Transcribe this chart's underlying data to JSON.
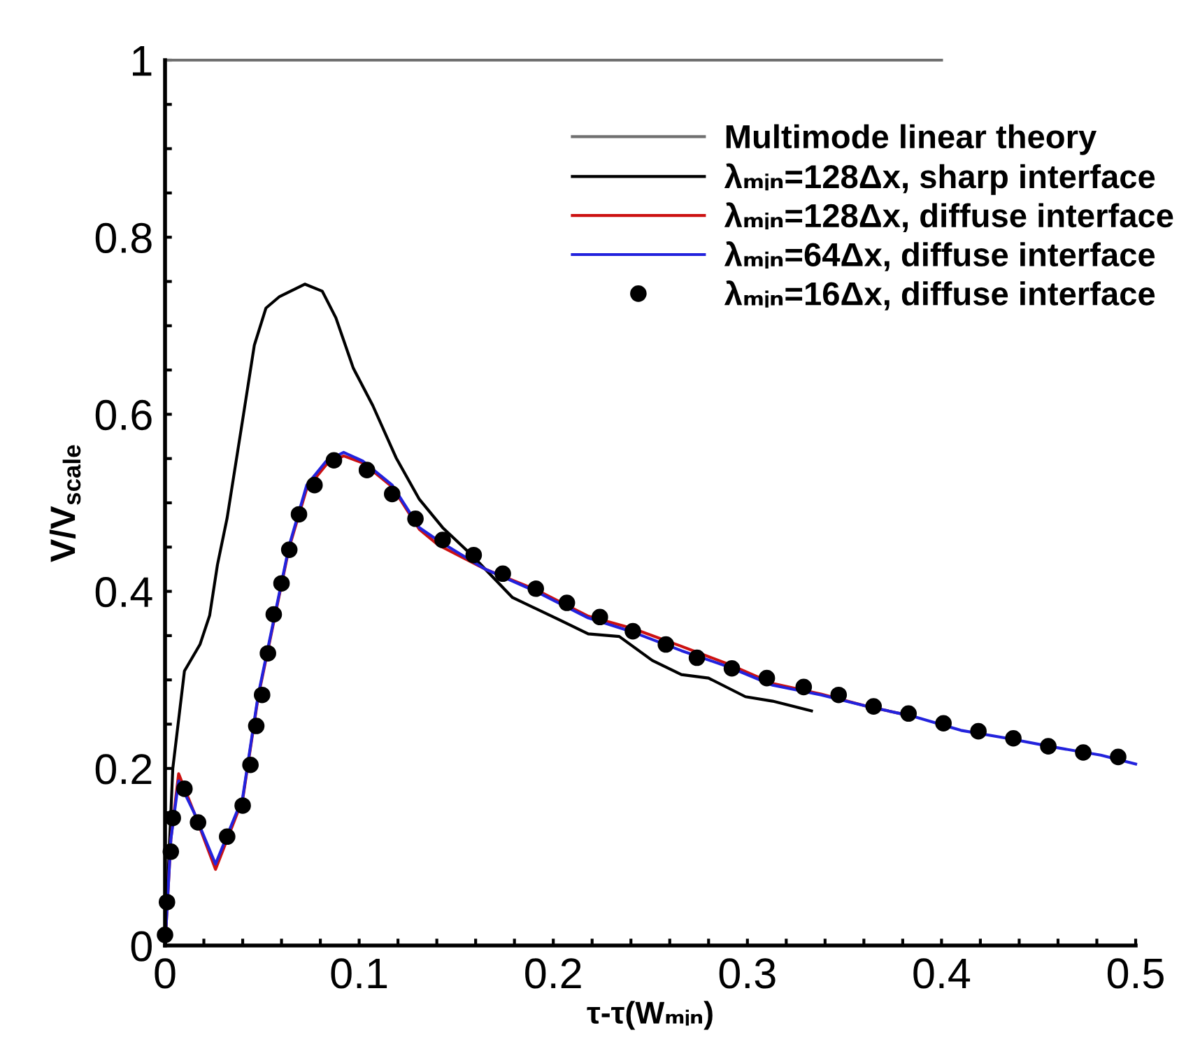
{
  "chart_data": {
    "type": "line",
    "xlabel": "τ-τ(Wₘᵢₙ)",
    "ylabel": "V/V$_{scale}$",
    "xlim": [
      0,
      0.5
    ],
    "ylim": [
      0,
      1
    ],
    "xticks": [
      0,
      {
        "value": 0.02,
        "label": null
      },
      {
        "value": 0.04,
        "label": null
      },
      {
        "value": 0.06,
        "label": null
      },
      {
        "value": 0.08,
        "label": null
      },
      0.1,
      {
        "value": 0.12,
        "label": null
      },
      {
        "value": 0.14,
        "label": null
      },
      {
        "value": 0.16,
        "label": null
      },
      {
        "value": 0.18,
        "label": null
      },
      0.2,
      {
        "value": 0.22,
        "label": null
      },
      {
        "value": 0.24,
        "label": null
      },
      {
        "value": 0.26,
        "label": null
      },
      {
        "value": 0.28,
        "label": null
      },
      0.3,
      {
        "value": 0.32,
        "label": null
      },
      {
        "value": 0.34,
        "label": null
      },
      {
        "value": 0.36,
        "label": null
      },
      {
        "value": 0.38,
        "label": null
      },
      0.4,
      {
        "value": 0.42,
        "label": null
      },
      {
        "value": 0.44,
        "label": null
      },
      {
        "value": 0.46,
        "label": null
      },
      {
        "value": 0.48,
        "label": null
      },
      0.5
    ],
    "yticks": [
      0,
      {
        "value": 0.05,
        "label": null
      },
      {
        "value": 0.1,
        "label": null
      },
      {
        "value": 0.15,
        "label": null
      },
      0.2,
      {
        "value": 0.25,
        "label": null
      },
      {
        "value": 0.3,
        "label": null
      },
      {
        "value": 0.35,
        "label": null
      },
      0.4,
      {
        "value": 0.45,
        "label": null
      },
      {
        "value": 0.5,
        "label": null
      },
      {
        "value": 0.55,
        "label": null
      },
      0.6,
      {
        "value": 0.65,
        "label": null
      },
      {
        "value": 0.7,
        "label": null
      },
      {
        "value": 0.75,
        "label": null
      },
      0.8,
      {
        "value": 0.85,
        "label": null
      },
      {
        "value": 0.9,
        "label": null
      },
      {
        "value": 0.95,
        "label": null
      },
      1
    ],
    "grid": false,
    "legend": "top right",
    "series": [
      {
        "name": "Multimode linear theory",
        "color": "#707070",
        "x": [
          0,
          0.4
        ],
        "values": [
          1,
          1
        ]
      },
      {
        "name": "λₘᵢₙ=128Δx, sharp interface",
        "color": "#000000",
        "x": [
          0,
          0.004,
          0.01,
          0.018,
          0.023,
          0.027,
          0.032,
          0.04,
          0.046,
          0.052,
          0.059,
          0.072,
          0.081,
          0.088,
          0.097,
          0.107,
          0.119,
          0.131,
          0.143,
          0.158,
          0.179,
          0.203,
          0.218,
          0.234,
          0.251,
          0.266,
          0.28,
          0.299,
          0.313,
          0.333
        ],
        "values": [
          0,
          0.2,
          0.31,
          0.34,
          0.373,
          0.43,
          0.483,
          0.594,
          0.678,
          0.72,
          0.733,
          0.747,
          0.739,
          0.709,
          0.652,
          0.61,
          0.551,
          0.504,
          0.472,
          0.441,
          0.393,
          0.368,
          0.352,
          0.349,
          0.322,
          0.306,
          0.302,
          0.281,
          0.276,
          0.265
        ]
      },
      {
        "name": "λₘᵢₙ=128Δx, diffuse interface",
        "color": "#cc1111",
        "x": [
          0,
          0.003,
          0.007,
          0.015,
          0.026,
          0.04,
          0.048,
          0.057,
          0.064,
          0.073,
          0.083,
          0.092,
          0.102,
          0.117,
          0.131,
          0.141,
          0.165,
          0.191,
          0.218,
          0.241,
          0.266,
          0.29,
          0.313,
          0.338,
          0.362,
          0.385
        ],
        "values": [
          0,
          0.12,
          0.194,
          0.15,
          0.086,
          0.165,
          0.281,
          0.376,
          0.45,
          0.516,
          0.543,
          0.553,
          0.545,
          0.518,
          0.47,
          0.452,
          0.425,
          0.402,
          0.372,
          0.358,
          0.338,
          0.318,
          0.296,
          0.284,
          0.27,
          0.259
        ]
      },
      {
        "name": "λₘᵢₙ=64Δx, diffuse interface",
        "color": "#2222dd",
        "x": [
          0,
          0.003,
          0.007,
          0.015,
          0.026,
          0.04,
          0.048,
          0.057,
          0.064,
          0.073,
          0.083,
          0.092,
          0.102,
          0.117,
          0.131,
          0.141,
          0.165,
          0.191,
          0.218,
          0.241,
          0.266,
          0.29,
          0.313,
          0.338,
          0.362,
          0.385,
          0.41,
          0.434,
          0.458,
          0.482,
          0.5
        ],
        "values": [
          0,
          0.12,
          0.186,
          0.15,
          0.092,
          0.167,
          0.283,
          0.378,
          0.452,
          0.52,
          0.547,
          0.557,
          0.547,
          0.52,
          0.472,
          0.457,
          0.425,
          0.4,
          0.37,
          0.354,
          0.333,
          0.315,
          0.294,
          0.283,
          0.27,
          0.259,
          0.243,
          0.234,
          0.224,
          0.215,
          0.205
        ]
      },
      {
        "name": "λₘᵢₙ=16Δx, diffuse interface",
        "type": "scatter",
        "marker": "circle",
        "color": "#000000",
        "x": [
          0,
          0.001,
          0.003,
          0.004,
          0.01,
          0.017,
          0.032,
          0.04,
          0.044,
          0.047,
          0.05,
          0.053,
          0.056,
          0.06,
          0.064,
          0.069,
          0.077,
          0.087,
          0.104,
          0.117,
          0.129,
          0.143,
          0.159,
          0.174,
          0.191,
          0.207,
          0.224,
          0.241,
          0.258,
          0.274,
          0.292,
          0.31,
          0.329,
          0.347,
          0.365,
          0.383,
          0.401,
          0.419,
          0.437,
          0.455,
          0.473,
          0.491
        ],
        "values": [
          0.012,
          0.049,
          0.106,
          0.144,
          0.177,
          0.139,
          0.123,
          0.158,
          0.204,
          0.248,
          0.283,
          0.33,
          0.374,
          0.409,
          0.447,
          0.487,
          0.52,
          0.548,
          0.537,
          0.51,
          0.482,
          0.458,
          0.441,
          0.42,
          0.403,
          0.387,
          0.371,
          0.355,
          0.34,
          0.325,
          0.313,
          0.302,
          0.292,
          0.283,
          0.27,
          0.262,
          0.251,
          0.242,
          0.234,
          0.225,
          0.218,
          0.213
        ]
      }
    ]
  }
}
